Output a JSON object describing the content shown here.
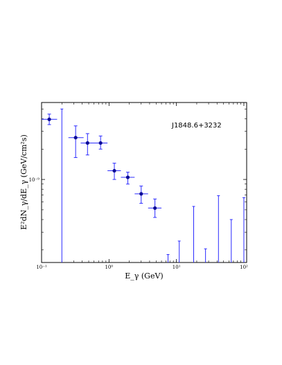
{
  "chart_data": {
    "type": "scatter",
    "title": "",
    "annotation": "J1848.6+3232",
    "xlabel": "E_γ (GeV)",
    "ylabel": "E²dN_γ/dE_γ (GeV/cm²s)",
    "x_scale": "log",
    "y_scale": "log",
    "xlim": [
      0.1,
      110
    ],
    "ylim": [
      1.5e-10,
      5.8e-09
    ],
    "xticks": [
      {
        "value": 0.1,
        "label": "10⁻¹"
      },
      {
        "value": 1,
        "label": "10⁰"
      },
      {
        "value": 10,
        "label": "10¹"
      },
      {
        "value": 100,
        "label": "10²"
      }
    ],
    "yticks": [
      {
        "value": 1e-09,
        "label": "10⁻⁹"
      }
    ],
    "grid": false,
    "color": "#0a0a96",
    "error_color": "#2b2bff",
    "points": [
      {
        "x": 0.13,
        "y": 3.95e-09,
        "xlo": 0.1,
        "xhi": 0.17,
        "ylo": 3.5e-09,
        "yhi": 4.45e-09
      },
      {
        "x": 0.32,
        "y": 2.6e-09,
        "xlo": 0.25,
        "xhi": 0.42,
        "ylo": 1.65e-09,
        "yhi": 3.4e-09
      },
      {
        "x": 0.48,
        "y": 2.3e-09,
        "xlo": 0.38,
        "xhi": 0.62,
        "ylo": 1.75e-09,
        "yhi": 2.85e-09
      },
      {
        "x": 0.75,
        "y": 2.3e-09,
        "xlo": 0.6,
        "xhi": 0.95,
        "ylo": 2e-09,
        "yhi": 2.7e-09
      },
      {
        "x": 1.2,
        "y": 1.22e-09,
        "xlo": 0.95,
        "xhi": 1.5,
        "ylo": 1e-09,
        "yhi": 1.45e-09
      },
      {
        "x": 1.9,
        "y": 1.05e-09,
        "xlo": 1.5,
        "xhi": 2.4,
        "ylo": 9e-10,
        "yhi": 1.18e-09
      },
      {
        "x": 3.0,
        "y": 7.2e-10,
        "xlo": 2.4,
        "xhi": 3.8,
        "ylo": 5.8e-10,
        "yhi": 8.6e-10
      },
      {
        "x": 4.8,
        "y": 5.2e-10,
        "xlo": 3.8,
        "xhi": 6.0,
        "ylo": 4.2e-10,
        "yhi": 6.4e-10
      }
    ],
    "upper_limits": [
      {
        "x": 0.2,
        "y": 5e-09
      },
      {
        "x": 7.5,
        "y": 1.8e-10
      },
      {
        "x": 11.0,
        "y": 2.45e-10
      },
      {
        "x": 18.0,
        "y": 5.4e-10
      },
      {
        "x": 27.0,
        "y": 2.05e-10
      },
      {
        "x": 42.0,
        "y": 6.9e-10
      },
      {
        "x": 65.0,
        "y": 4e-10
      },
      {
        "x": 100.0,
        "y": 6.6e-10
      }
    ]
  }
}
